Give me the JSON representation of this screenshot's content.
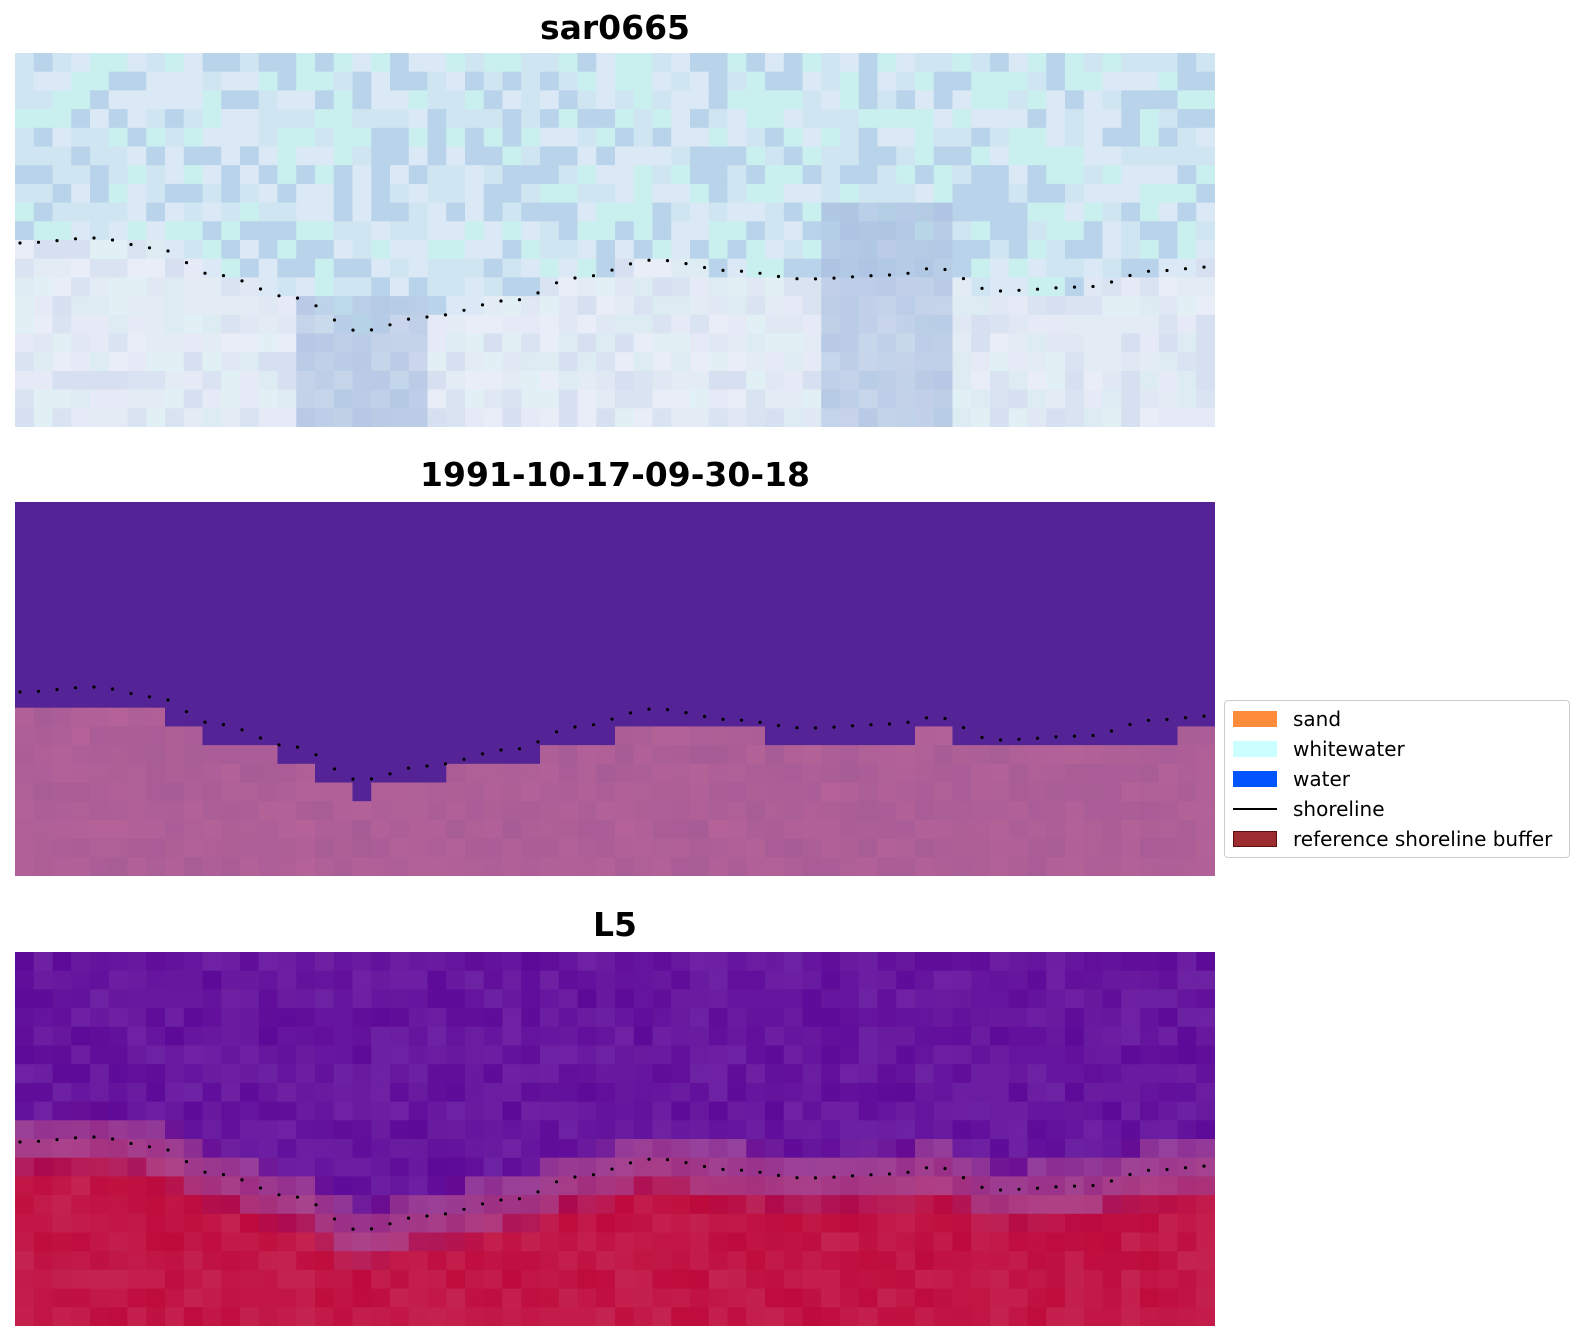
{
  "panels": [
    {
      "title": "sar0665",
      "kind": "sar"
    },
    {
      "title": "1991-10-17-09-30-18",
      "kind": "classified"
    },
    {
      "title": "L5",
      "kind": "index"
    }
  ],
  "legend": {
    "items": [
      {
        "label": "sand",
        "color": "#ff8c3a",
        "kind": "patch"
      },
      {
        "label": "whitewater",
        "color": "#ccffff",
        "kind": "patch"
      },
      {
        "label": "water",
        "color": "#0055ff",
        "kind": "patch"
      },
      {
        "label": "shoreline",
        "color": "#000000",
        "kind": "line"
      },
      {
        "label": "reference shoreline buffer",
        "color": "#9b2d30",
        "kind": "patch"
      }
    ]
  },
  "colors": {
    "water_class": "#542396",
    "sand_class": "#a85c95",
    "index_low": "#5e0a99",
    "index_high": "#be0a3c",
    "shoreline": "#000000"
  }
}
